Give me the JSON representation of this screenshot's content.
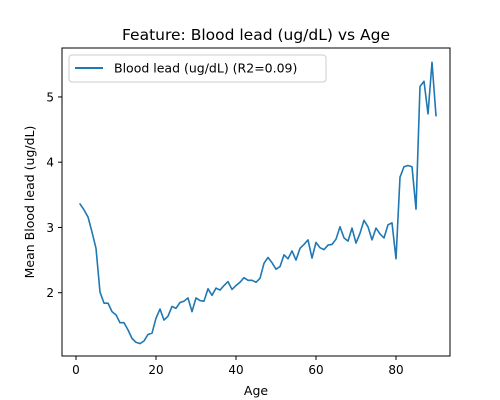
{
  "chart_data": {
    "type": "line",
    "title": "Feature: Blood lead (ug/dL) vs Age",
    "xlabel": "Age",
    "ylabel": "Mean Blood lead (ug/dL)",
    "xlim": [
      -3.5,
      93.5
    ],
    "ylim": [
      1.03,
      5.75
    ],
    "xticks": [
      0,
      20,
      40,
      60,
      80
    ],
    "yticks": [
      2,
      3,
      4,
      5
    ],
    "grid": false,
    "legend": {
      "position": "top-left"
    },
    "series": [
      {
        "name": "Blood lead (ug/dL) (R2=0.09)",
        "color": "#1f77b4",
        "x": [
          1,
          2,
          3,
          4,
          5,
          6,
          7,
          8,
          9,
          10,
          11,
          12,
          13,
          14,
          15,
          16,
          17,
          18,
          19,
          20,
          21,
          22,
          23,
          24,
          25,
          26,
          27,
          28,
          29,
          30,
          31,
          32,
          33,
          34,
          35,
          36,
          37,
          38,
          39,
          40,
          41,
          42,
          43,
          44,
          45,
          46,
          47,
          48,
          49,
          50,
          51,
          52,
          53,
          54,
          55,
          56,
          57,
          58,
          59,
          60,
          61,
          62,
          63,
          64,
          65,
          66,
          67,
          68,
          69,
          70,
          71,
          72,
          73,
          74,
          75,
          76,
          77,
          78,
          79,
          80,
          81,
          82,
          83,
          84,
          85,
          86,
          87,
          88,
          89,
          90
        ],
        "y": [
          3.36,
          3.27,
          3.16,
          2.93,
          2.68,
          2.01,
          1.84,
          1.84,
          1.71,
          1.66,
          1.54,
          1.54,
          1.43,
          1.3,
          1.24,
          1.22,
          1.26,
          1.36,
          1.38,
          1.61,
          1.75,
          1.58,
          1.64,
          1.79,
          1.76,
          1.85,
          1.87,
          1.92,
          1.71,
          1.92,
          1.88,
          1.87,
          2.06,
          1.96,
          2.07,
          2.04,
          2.11,
          2.17,
          2.05,
          2.11,
          2.16,
          2.23,
          2.19,
          2.19,
          2.16,
          2.22,
          2.45,
          2.54,
          2.46,
          2.36,
          2.4,
          2.58,
          2.52,
          2.64,
          2.5,
          2.68,
          2.74,
          2.81,
          2.53,
          2.77,
          2.69,
          2.66,
          2.73,
          2.74,
          2.82,
          3.01,
          2.84,
          2.79,
          2.99,
          2.76,
          2.91,
          3.11,
          3.01,
          2.81,
          2.99,
          2.9,
          2.84,
          3.04,
          3.07,
          2.52,
          3.77,
          3.93,
          3.95,
          3.93,
          3.28,
          5.16,
          5.24,
          4.74,
          5.53,
          4.71
        ]
      }
    ]
  }
}
